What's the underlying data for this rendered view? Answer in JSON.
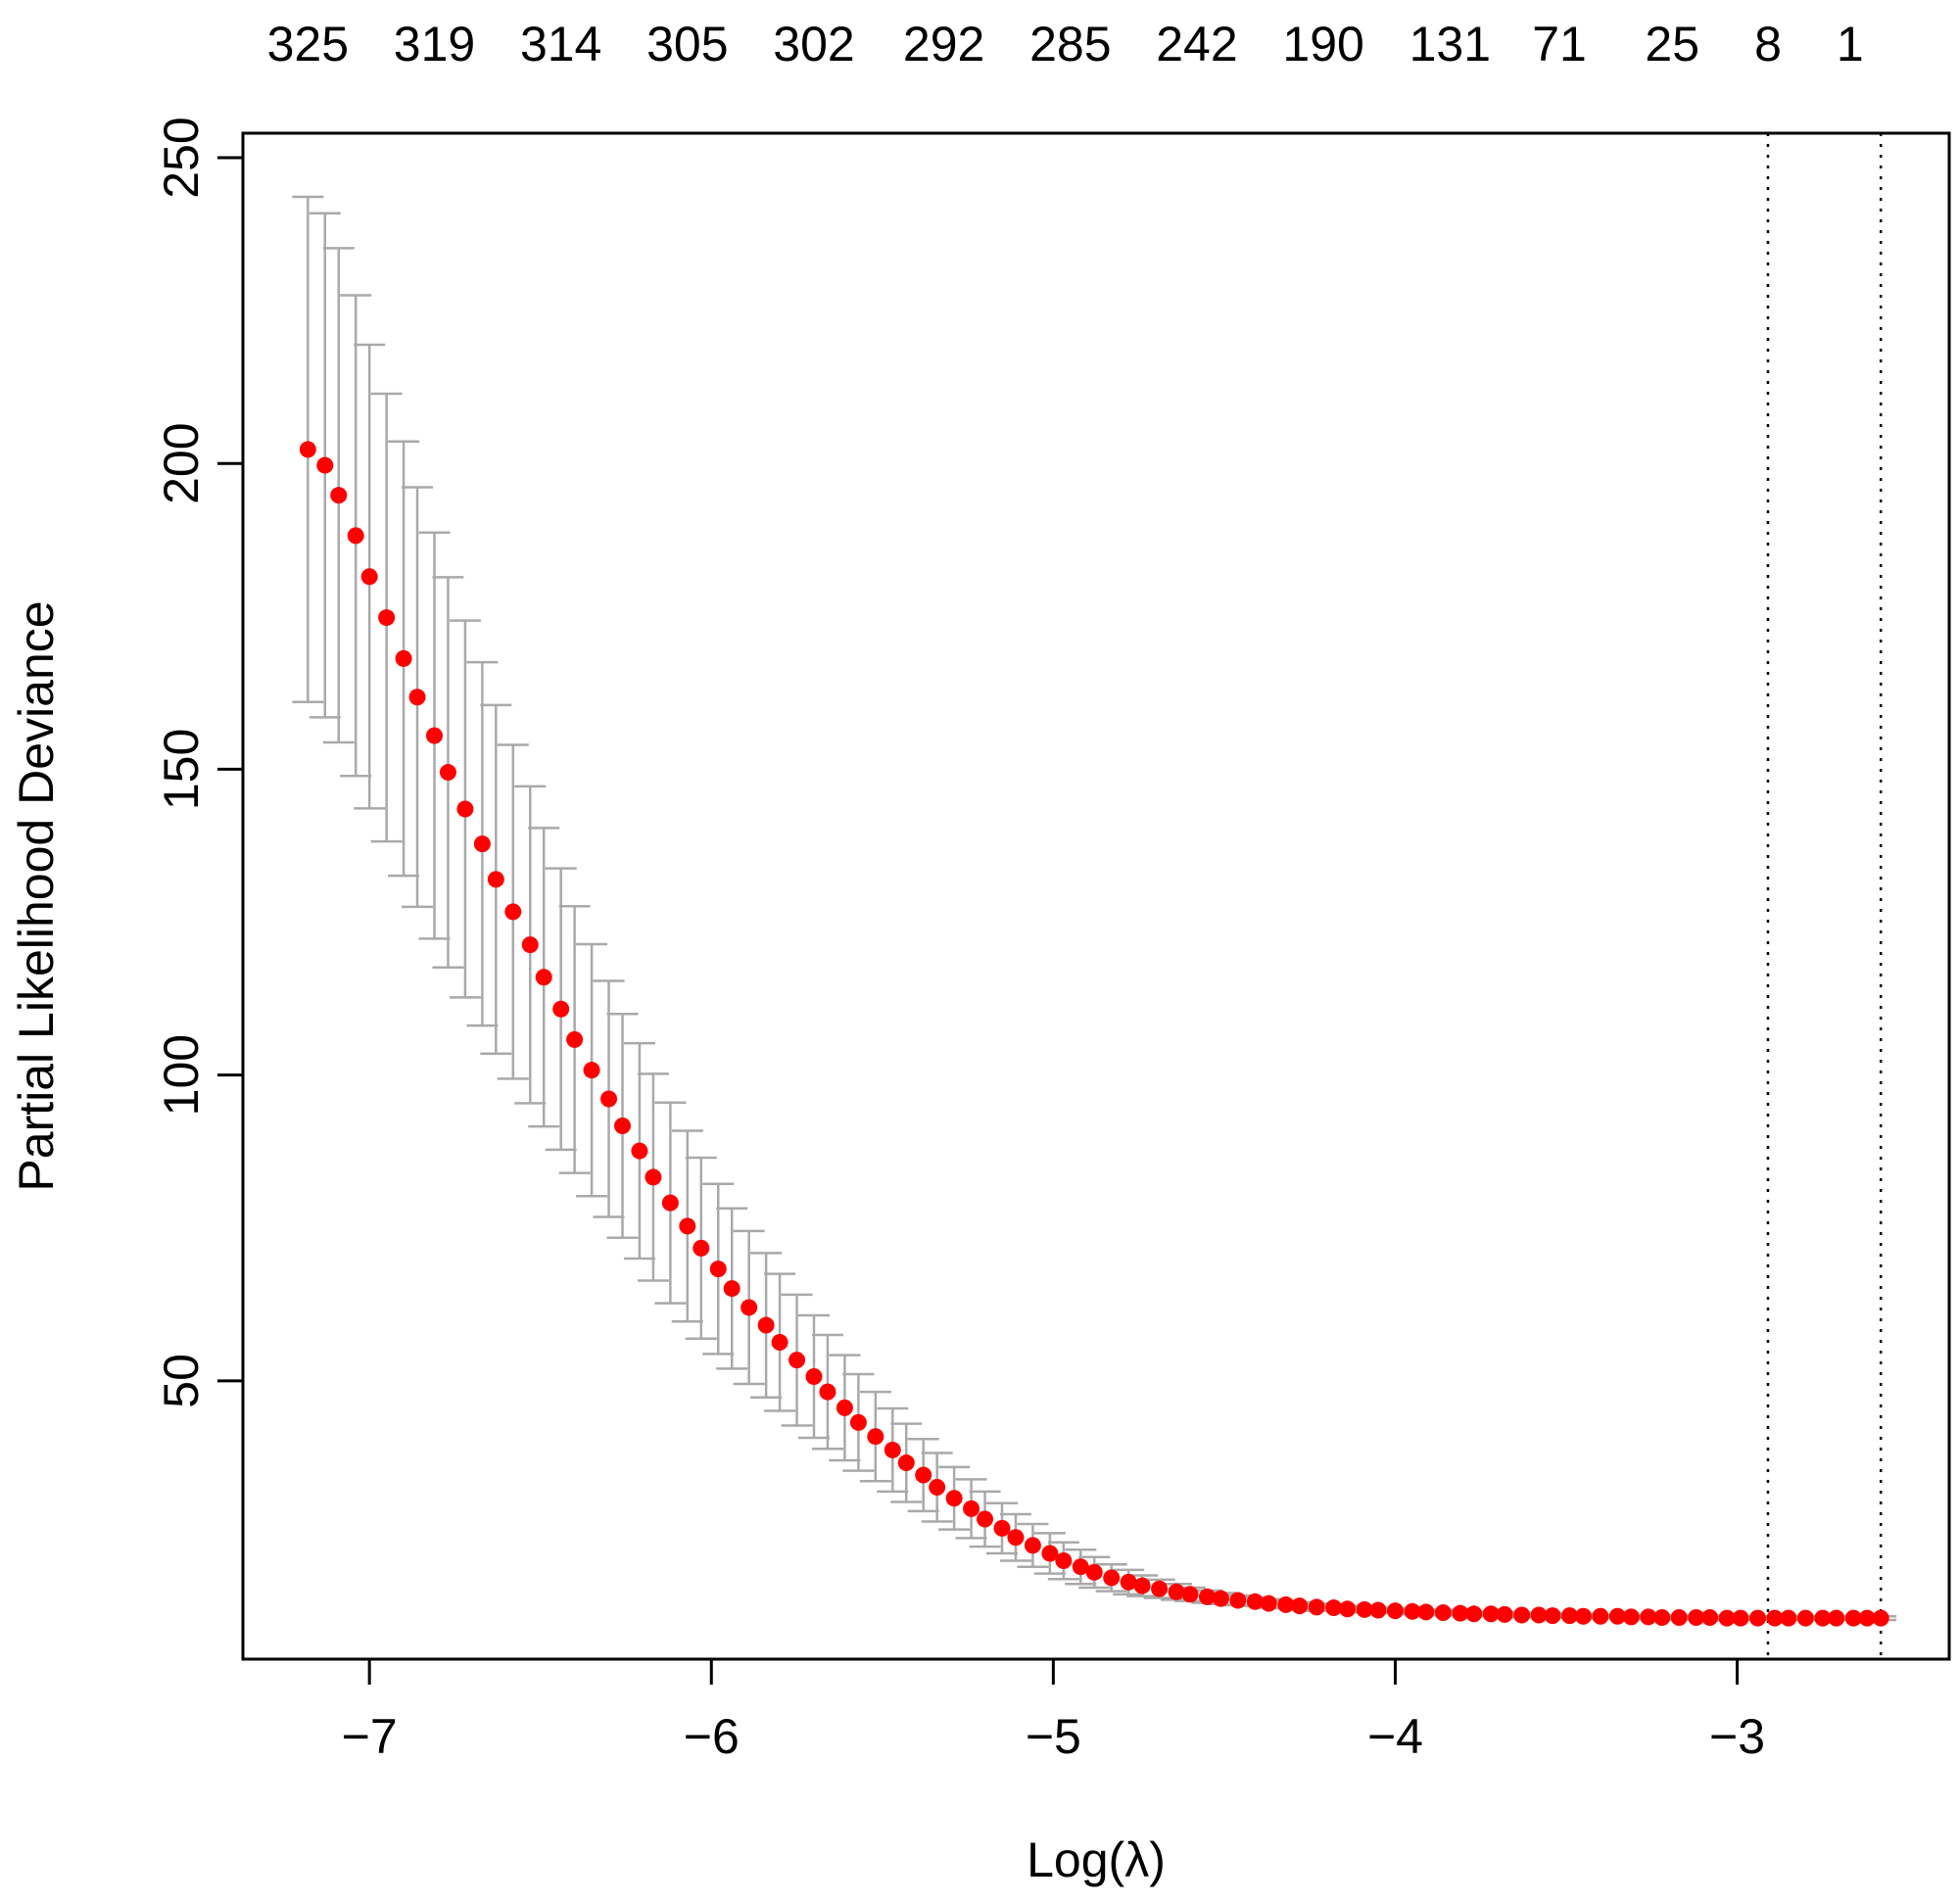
{
  "chart_data": {
    "type": "scatter",
    "xlabel": "Log(λ)",
    "ylabel": "Partial Likelihood Deviance",
    "xlim": [
      -7.37,
      -2.38
    ],
    "ylim": [
      4.5,
      254
    ],
    "x_ticks": [
      -7,
      -6,
      -5,
      -4,
      -3
    ],
    "x_tick_labels": [
      "−7",
      "−6",
      "−5",
      "−4",
      "−3"
    ],
    "y_ticks": [
      50,
      100,
      150,
      200,
      250
    ],
    "y_tick_labels": [
      "50",
      "100",
      "150",
      "200",
      "250"
    ],
    "top_axis": {
      "title": "",
      "x": [
        -7.18,
        -6.81,
        -6.44,
        -6.07,
        -5.7,
        -5.32,
        -4.95,
        -4.58,
        -4.21,
        -3.84,
        -3.52,
        -3.19,
        -2.91,
        -2.67
      ],
      "labels": [
        "325",
        "319",
        "314",
        "305",
        "302",
        "292",
        "285",
        "242",
        "190",
        "131",
        "71",
        "25",
        "8",
        "1"
      ]
    },
    "grid": false,
    "legend": "none",
    "vlines": [
      -2.91,
      -2.58
    ],
    "colors": {
      "points": "#ff0000",
      "error_bars": "#a9a9a9",
      "vlines": "#000000"
    },
    "series": [
      {
        "x": [
          -7.18,
          -7.13,
          -7.09,
          -7.04,
          -7.0,
          -6.95,
          -6.9,
          -6.86,
          -6.81,
          -6.77,
          -6.72,
          -6.67,
          -6.63,
          -6.58,
          -6.53,
          -6.49,
          -6.44,
          -6.4,
          -6.35,
          -6.3,
          -6.26,
          -6.21,
          -6.17,
          -6.12,
          -6.07,
          -6.03,
          -5.98,
          -5.94,
          -5.89,
          -5.84,
          -5.8,
          -5.75,
          -5.7,
          -5.66,
          -5.61,
          -5.57,
          -5.52,
          -5.47,
          -5.43,
          -5.38,
          -5.34,
          -5.29,
          -5.24,
          -5.2,
          -5.15,
          -5.11,
          -5.06,
          -5.01,
          -4.97,
          -4.92,
          -4.88,
          -4.83,
          -4.78,
          -4.74,
          -4.69,
          -4.64,
          -4.6,
          -4.55,
          -4.51,
          -4.46,
          -4.41,
          -4.37,
          -4.32,
          -4.28,
          -4.23,
          -4.18,
          -4.14,
          -4.09,
          -4.05,
          -4.0,
          -3.95,
          -3.91,
          -3.86,
          -3.81,
          -3.77,
          -3.72,
          -3.68,
          -3.63,
          -3.58,
          -3.54,
          -3.49,
          -3.45,
          -3.4,
          -3.35,
          -3.31,
          -3.26,
          -3.22,
          -3.17,
          -3.12,
          -3.08,
          -3.03,
          -2.99,
          -2.94,
          -2.89,
          -2.85,
          -2.8,
          -2.75,
          -2.71,
          -2.66,
          -2.62,
          -2.58
        ],
        "y": [
          202.3,
          199.7,
          194.8,
          188.2,
          181.5,
          174.8,
          168.1,
          161.8,
          155.5,
          149.5,
          143.5,
          137.8,
          132.0,
          126.7,
          121.3,
          116.0,
          110.8,
          105.8,
          100.8,
          96.1,
          91.7,
          87.6,
          83.3,
          79.1,
          75.3,
          71.7,
          68.3,
          65.1,
          62.0,
          59.1,
          56.3,
          53.4,
          50.7,
          48.2,
          45.6,
          43.2,
          40.9,
          38.7,
          36.6,
          34.6,
          32.6,
          30.8,
          29.1,
          27.4,
          25.9,
          24.4,
          23.1,
          21.8,
          20.6,
          19.6,
          18.7,
          17.8,
          17.1,
          16.5,
          16.0,
          15.5,
          15.1,
          14.7,
          14.4,
          14.1,
          13.9,
          13.6,
          13.4,
          13.2,
          13.0,
          12.9,
          12.7,
          12.6,
          12.5,
          12.4,
          12.3,
          12.2,
          12.1,
          12.0,
          11.9,
          11.9,
          11.8,
          11.7,
          11.7,
          11.6,
          11.6,
          11.5,
          11.5,
          11.5,
          11.4,
          11.4,
          11.3,
          11.3,
          11.3,
          11.3,
          11.2,
          11.2,
          11.2,
          11.2,
          11.2,
          11.2,
          11.2,
          11.2,
          11.2,
          11.2,
          11.2
        ],
        "y_upper": [
          243.6,
          240.9,
          235.2,
          227.5,
          219.4,
          211.4,
          203.6,
          196.1,
          188.7,
          181.4,
          174.3,
          167.5,
          160.5,
          154.0,
          147.2,
          140.4,
          133.8,
          127.6,
          121.4,
          115.4,
          110.0,
          105.2,
          100.2,
          95.5,
          90.9,
          86.5,
          82.2,
          78.2,
          74.5,
          70.9,
          67.5,
          64.1,
          60.7,
          57.5,
          54.2,
          51.1,
          48.2,
          45.5,
          43.0,
          40.5,
          38.2,
          35.9,
          33.9,
          31.9,
          30.0,
          28.2,
          26.6,
          25.1,
          23.6,
          22.4,
          21.2,
          20.0,
          19.1,
          18.2,
          17.5,
          16.8,
          16.2,
          15.7,
          15.3,
          14.9,
          14.6,
          14.3,
          14.0,
          13.8,
          13.6,
          13.4,
          13.2,
          13.1,
          12.9,
          12.8,
          12.7,
          12.6,
          12.5,
          12.4,
          12.3,
          12.2,
          12.2,
          12.1,
          12.0,
          12.0,
          11.9,
          11.9,
          11.8,
          11.8,
          11.7,
          11.7,
          11.7,
          11.6,
          11.6,
          11.6,
          11.6,
          11.5,
          11.5,
          11.5,
          11.5,
          11.5,
          11.5,
          11.5,
          11.5,
          11.5,
          11.5
        ],
        "y_lower": [
          161.0,
          158.5,
          154.4,
          148.9,
          143.6,
          138.2,
          132.6,
          127.5,
          122.3,
          117.6,
          112.7,
          108.1,
          103.5,
          99.4,
          95.4,
          91.6,
          87.8,
          84.0,
          80.2,
          76.8,
          73.4,
          70.0,
          66.4,
          62.7,
          59.7,
          56.9,
          54.4,
          52.0,
          49.5,
          47.3,
          45.1,
          42.7,
          40.7,
          38.9,
          37.0,
          35.3,
          33.6,
          31.9,
          30.2,
          28.7,
          27.0,
          25.7,
          24.3,
          22.9,
          21.8,
          20.6,
          19.6,
          18.5,
          17.6,
          16.8,
          16.2,
          15.6,
          15.1,
          14.8,
          14.5,
          14.2,
          14.0,
          13.7,
          13.5,
          13.3,
          13.2,
          12.9,
          12.8,
          12.6,
          12.4,
          12.4,
          12.2,
          12.1,
          12.1,
          12.0,
          11.9,
          11.8,
          11.7,
          11.6,
          11.5,
          11.6,
          11.4,
          11.3,
          11.4,
          11.2,
          11.3,
          11.1,
          11.2,
          11.2,
          11.1,
          11.1,
          10.9,
          11.0,
          11.0,
          11.0,
          10.8,
          10.9,
          10.9,
          10.9,
          10.9,
          10.9,
          10.9,
          10.9,
          10.9,
          10.9,
          10.9
        ]
      }
    ]
  }
}
